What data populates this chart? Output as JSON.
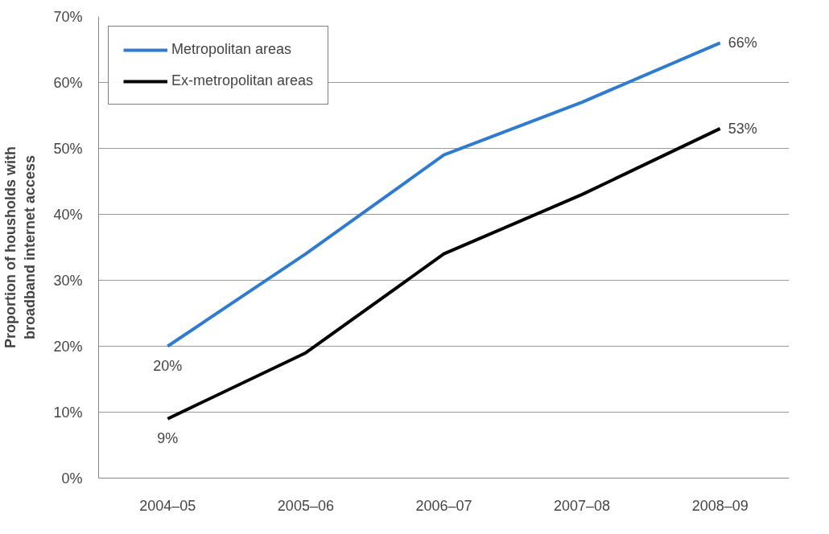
{
  "chart_data": {
    "type": "line",
    "ylabel": "Proportion of housholds with broadband internet access",
    "categories": [
      "2004–05",
      "2005–06",
      "2006–07",
      "2007–08",
      "2008–09"
    ],
    "series": [
      {
        "name": "Metropolitan areas",
        "color": "#2e7bcf",
        "values": [
          20,
          34,
          49,
          57,
          66
        ],
        "value_labels": [
          "20%",
          null,
          null,
          null,
          "66%"
        ]
      },
      {
        "name": "Ex-metropolitan areas",
        "color": "#000000",
        "values": [
          9,
          19,
          34,
          43,
          53
        ],
        "value_labels": [
          "9%",
          null,
          null,
          null,
          "53%"
        ]
      }
    ],
    "ylim": [
      0,
      70
    ],
    "yticks": [
      {
        "value": 0,
        "label": "0%"
      },
      {
        "value": 10,
        "label": "10%"
      },
      {
        "value": 20,
        "label": "20%"
      },
      {
        "value": 30,
        "label": "30%"
      },
      {
        "value": 40,
        "label": "40%"
      },
      {
        "value": 50,
        "label": "50%"
      },
      {
        "value": 60,
        "label": "60%"
      },
      {
        "value": 70,
        "label": "70%"
      }
    ],
    "grid": "y",
    "legend": "top left",
    "marker": "none",
    "line_style": "solid"
  }
}
